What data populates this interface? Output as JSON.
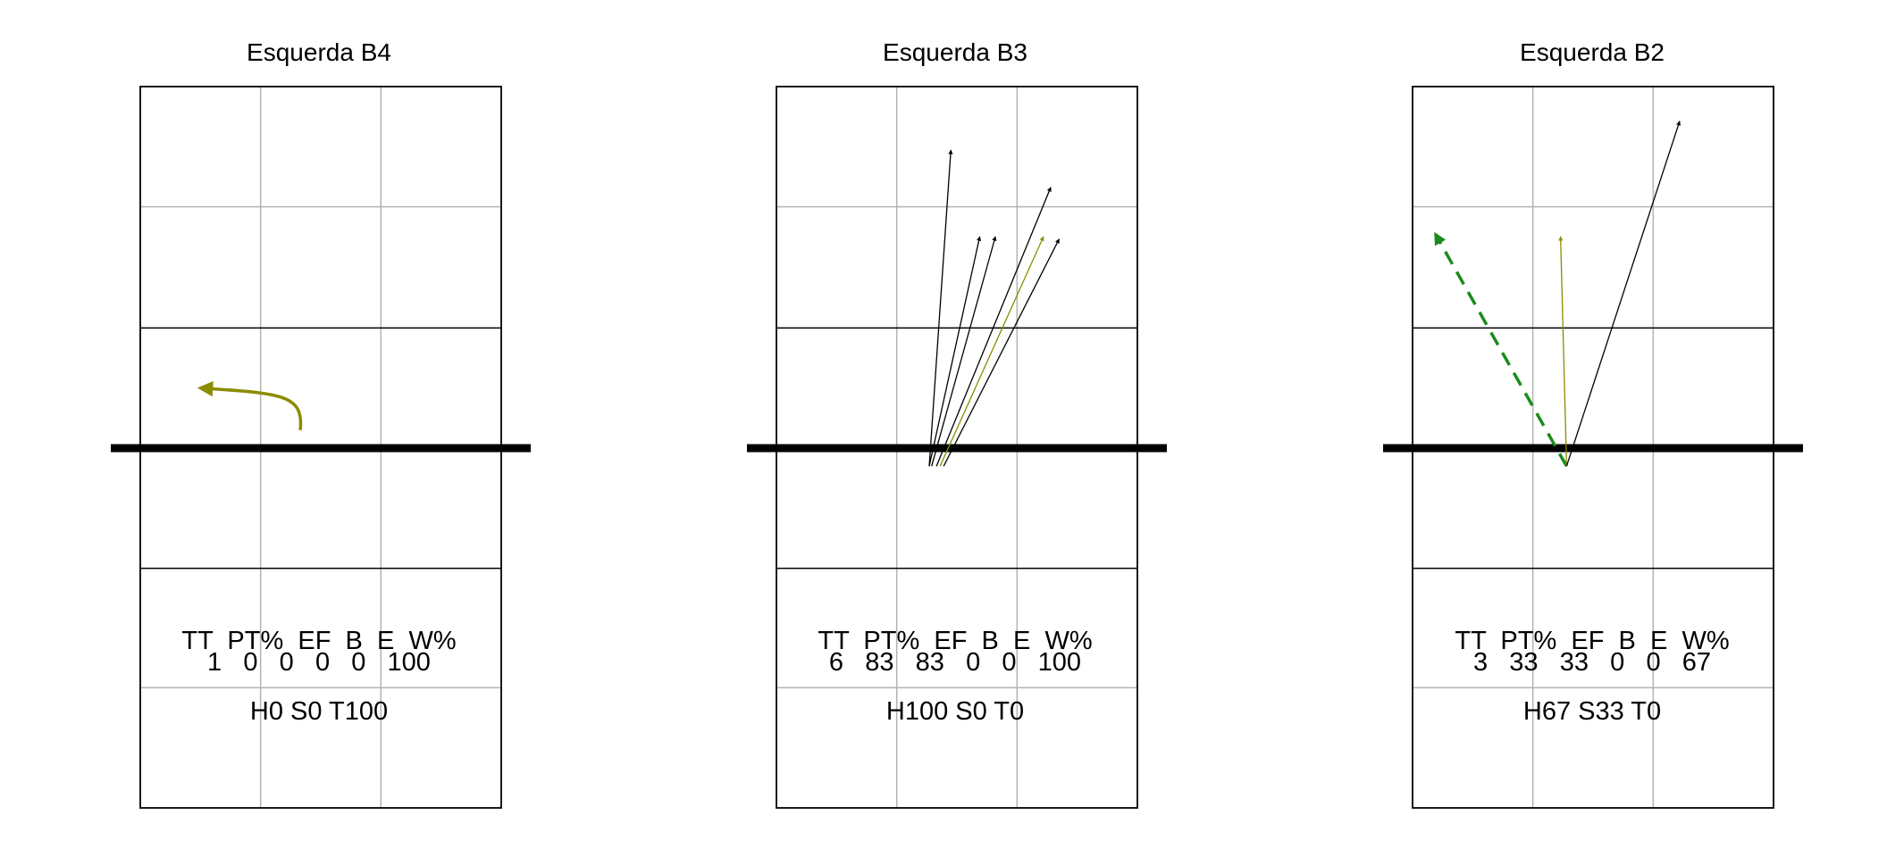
{
  "colors": {
    "net": "#000000",
    "grid_major": "#000000",
    "grid_minor": "#b3b3b3",
    "arrow_black": "#000000",
    "arrow_olive": "#8c8c00",
    "arrow_green": "#1a8c1a"
  },
  "panels": [
    {
      "title": "Esquerda B4",
      "stats_header": "TT  PT%  EF  B  E  W%",
      "stats_values": "1   0   0   0   0   100",
      "zones": "H0 S0 T100",
      "attacks": [
        {
          "style": "curve",
          "color": "arrow_olive",
          "from": [
            1.33,
            3.15
          ],
          "to": [
            0.5,
            3.5
          ]
        }
      ]
    },
    {
      "title": "Esquerda B3",
      "stats_header": "TT  PT%  EF  B  E  W%",
      "stats_values": "6   83   83   0   0   100",
      "zones": "H100 S0 T0",
      "attacks": [
        {
          "style": "line",
          "color": "arrow_black",
          "from": [
            1.27,
            2.85
          ],
          "to": [
            1.45,
            5.48
          ]
        },
        {
          "style": "line",
          "color": "arrow_black",
          "from": [
            1.27,
            2.85
          ],
          "to": [
            1.69,
            4.76
          ]
        },
        {
          "style": "line",
          "color": "arrow_black",
          "from": [
            1.29,
            2.85
          ],
          "to": [
            1.82,
            4.76
          ]
        },
        {
          "style": "line",
          "color": "arrow_black",
          "from": [
            1.33,
            2.85
          ],
          "to": [
            2.28,
            5.17
          ]
        },
        {
          "style": "line",
          "color": "arrow_black",
          "from": [
            1.39,
            2.85
          ],
          "to": [
            2.35,
            4.74
          ]
        },
        {
          "style": "line",
          "color": "arrow_olive",
          "from": [
            1.36,
            2.85
          ],
          "to": [
            2.22,
            4.76
          ]
        }
      ]
    },
    {
      "title": "Esquerda B2",
      "stats_header": "TT  PT%  EF  B  E  W%",
      "stats_values": "3   33   33   0   0   67",
      "zones": "H67 S33 T0",
      "attacks": [
        {
          "style": "dashed",
          "color": "arrow_green",
          "from": [
            1.28,
            2.85
          ],
          "to": [
            0.19,
            4.78
          ]
        },
        {
          "style": "line",
          "color": "arrow_olive",
          "from": [
            1.28,
            2.85
          ],
          "to": [
            1.23,
            4.76
          ]
        },
        {
          "style": "line",
          "color": "arrow_black",
          "from": [
            1.28,
            2.85
          ],
          "to": [
            2.22,
            5.72
          ]
        }
      ]
    }
  ]
}
